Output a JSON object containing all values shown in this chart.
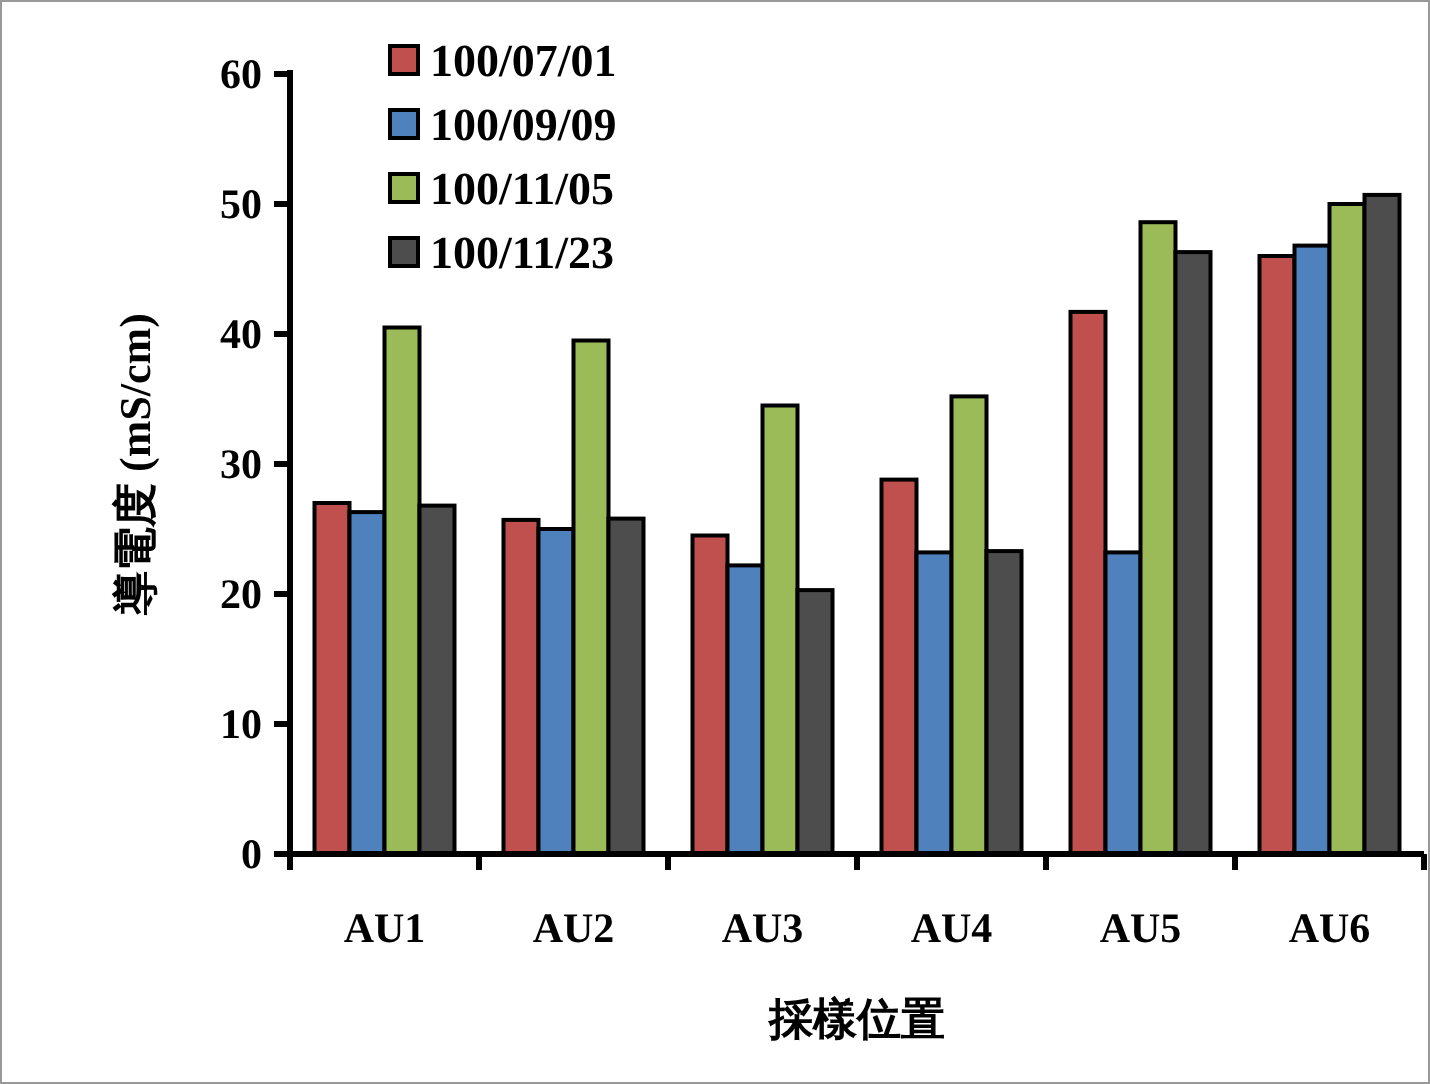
{
  "chart_data": {
    "type": "bar",
    "xlabel": "採樣位置",
    "ylabel": "導電度 (mS/cm)",
    "categories": [
      "AU1",
      "AU2",
      "AU3",
      "AU4",
      "AU5",
      "AU6"
    ],
    "series": [
      {
        "name": "100/07/01",
        "color": "#c0504d",
        "values": [
          27,
          25.7,
          24.5,
          28.8,
          41.7,
          46
        ]
      },
      {
        "name": "100/09/09",
        "color": "#4f81bd",
        "values": [
          26.3,
          25,
          22.2,
          23.2,
          23.2,
          46.8
        ]
      },
      {
        "name": "100/11/05",
        "color": "#9bbb59",
        "values": [
          40.5,
          39.5,
          34.5,
          35.2,
          48.6,
          50
        ]
      },
      {
        "name": "100/11/23",
        "color": "#4d4d4d",
        "values": [
          26.8,
          25.8,
          20.3,
          23.3,
          46.3,
          50.7
        ]
      }
    ],
    "ylim": [
      0,
      60
    ],
    "yticks": [
      0,
      10,
      20,
      30,
      40,
      50,
      60
    ],
    "legend": "top left",
    "grid": false
  }
}
